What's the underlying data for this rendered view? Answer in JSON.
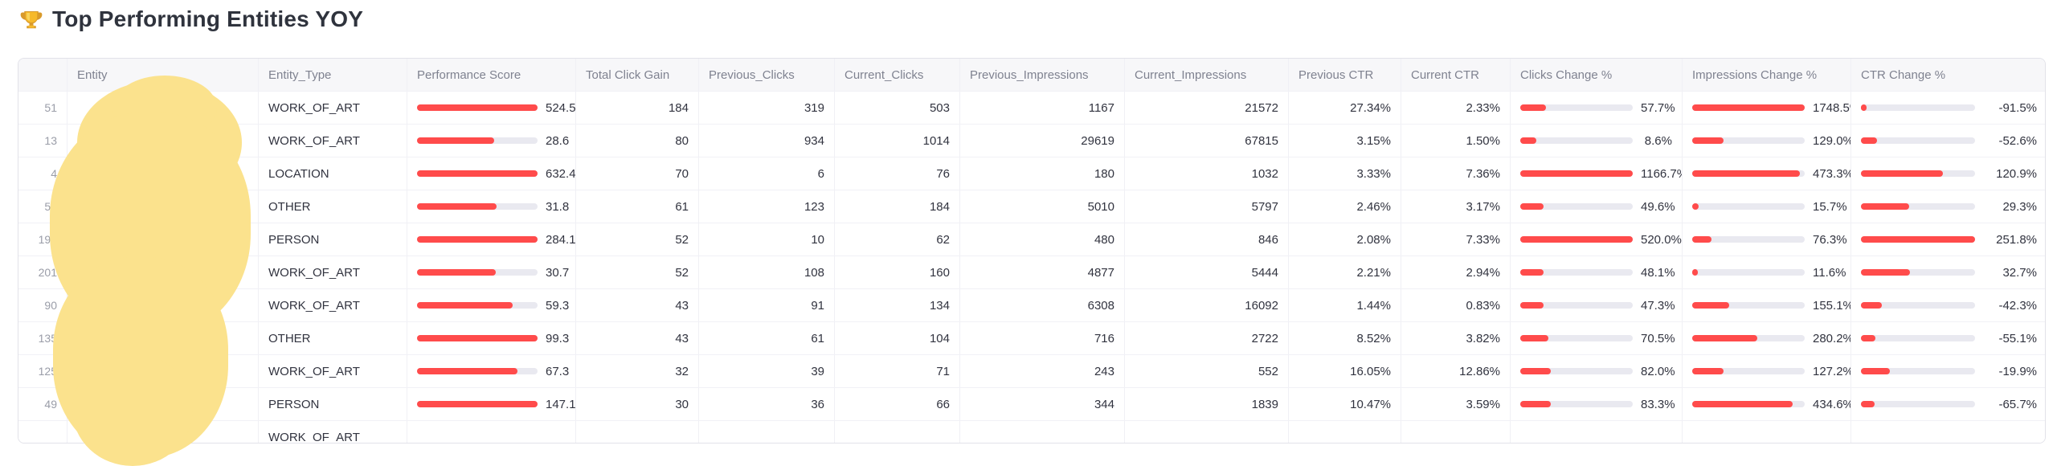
{
  "title": {
    "icon": "trophy",
    "text": "Top Performing Entities YOY"
  },
  "colors": {
    "accent_red": "#ff4b4b",
    "bar_track": "#e9e9f0",
    "redaction_blob": "#fbe28d",
    "header_bg": "#f7f7f9",
    "grid_line": "#f0f0f5",
    "title_text": "#2f333d"
  },
  "table": {
    "columns": [
      {
        "key": "index",
        "label": ""
      },
      {
        "key": "entity",
        "label": "Entity"
      },
      {
        "key": "entity_type",
        "label": "Entity_Type"
      },
      {
        "key": "performance_score",
        "label": "Performance Score"
      },
      {
        "key": "total_click_gain",
        "label": "Total Click Gain"
      },
      {
        "key": "previous_clicks",
        "label": "Previous_Clicks"
      },
      {
        "key": "current_clicks",
        "label": "Current_Clicks"
      },
      {
        "key": "previous_impressions",
        "label": "Previous_Impressions"
      },
      {
        "key": "current_impressions",
        "label": "Current_Impressions"
      },
      {
        "key": "previous_ctr",
        "label": "Previous CTR"
      },
      {
        "key": "current_ctr",
        "label": "Current CTR"
      },
      {
        "key": "clicks_change",
        "label": "Clicks Change %"
      },
      {
        "key": "impressions_change",
        "label": "Impressions Change %"
      },
      {
        "key": "ctr_change",
        "label": "CTR Change %"
      }
    ],
    "rows": [
      {
        "index": "51",
        "entity": "",
        "entity_type": "WORK_OF_ART",
        "performance_score": {
          "value": "524.5",
          "bar_pct": 100
        },
        "total_click_gain": "184",
        "previous_clicks": "319",
        "current_clicks": "503",
        "previous_impressions": "1167",
        "current_impressions": "21572",
        "previous_ctr": "27.34%",
        "current_ctr": "2.33%",
        "clicks_change": {
          "value": "57.7%",
          "bar_pct": 23
        },
        "impressions_change": {
          "value": "1748.5%",
          "bar_pct": 100
        },
        "ctr_change": {
          "value": "-91.5%",
          "bar_pct": 3
        }
      },
      {
        "index": "13",
        "entity": "",
        "entity_type": "WORK_OF_ART",
        "performance_score": {
          "value": "28.6",
          "bar_pct": 64
        },
        "total_click_gain": "80",
        "previous_clicks": "934",
        "current_clicks": "1014",
        "previous_impressions": "29619",
        "current_impressions": "67815",
        "previous_ctr": "3.15%",
        "current_ctr": "1.50%",
        "clicks_change": {
          "value": "8.6%",
          "bar_pct": 14
        },
        "impressions_change": {
          "value": "129.0%",
          "bar_pct": 28
        },
        "ctr_change": {
          "value": "-52.6%",
          "bar_pct": 14
        }
      },
      {
        "index": "4",
        "entity": "",
        "entity_type": "LOCATION",
        "performance_score": {
          "value": "632.4",
          "bar_pct": 100
        },
        "total_click_gain": "70",
        "previous_clicks": "6",
        "current_clicks": "76",
        "previous_impressions": "180",
        "current_impressions": "1032",
        "previous_ctr": "3.33%",
        "current_ctr": "7.36%",
        "clicks_change": {
          "value": "1166.7%",
          "bar_pct": 100
        },
        "impressions_change": {
          "value": "473.3%",
          "bar_pct": 96
        },
        "ctr_change": {
          "value": "120.9%",
          "bar_pct": 72
        }
      },
      {
        "index": "56",
        "entity": "",
        "entity_type": "OTHER",
        "performance_score": {
          "value": "31.8",
          "bar_pct": 66
        },
        "total_click_gain": "61",
        "previous_clicks": "123",
        "current_clicks": "184",
        "previous_impressions": "5010",
        "current_impressions": "5797",
        "previous_ctr": "2.46%",
        "current_ctr": "3.17%",
        "clicks_change": {
          "value": "49.6%",
          "bar_pct": 21
        },
        "impressions_change": {
          "value": "15.7%",
          "bar_pct": 6
        },
        "ctr_change": {
          "value": "29.3%",
          "bar_pct": 42
        }
      },
      {
        "index": "194",
        "entity": "",
        "entity_type": "PERSON",
        "performance_score": {
          "value": "284.1",
          "bar_pct": 100
        },
        "total_click_gain": "52",
        "previous_clicks": "10",
        "current_clicks": "62",
        "previous_impressions": "480",
        "current_impressions": "846",
        "previous_ctr": "2.08%",
        "current_ctr": "7.33%",
        "clicks_change": {
          "value": "520.0%",
          "bar_pct": 100
        },
        "impressions_change": {
          "value": "76.3%",
          "bar_pct": 17
        },
        "ctr_change": {
          "value": "251.8%",
          "bar_pct": 100
        }
      },
      {
        "index": "201",
        "entity": "",
        "entity_type": "WORK_OF_ART",
        "performance_score": {
          "value": "30.7",
          "bar_pct": 65
        },
        "total_click_gain": "52",
        "previous_clicks": "108",
        "current_clicks": "160",
        "previous_impressions": "4877",
        "current_impressions": "5444",
        "previous_ctr": "2.21%",
        "current_ctr": "2.94%",
        "clicks_change": {
          "value": "48.1%",
          "bar_pct": 21
        },
        "impressions_change": {
          "value": "11.6%",
          "bar_pct": 5
        },
        "ctr_change": {
          "value": "32.7%",
          "bar_pct": 43
        }
      },
      {
        "index": "90",
        "entity": "",
        "entity_type": "WORK_OF_ART",
        "performance_score": {
          "value": "59.3",
          "bar_pct": 79
        },
        "total_click_gain": "43",
        "previous_clicks": "91",
        "current_clicks": "134",
        "previous_impressions": "6308",
        "current_impressions": "16092",
        "previous_ctr": "1.44%",
        "current_ctr": "0.83%",
        "clicks_change": {
          "value": "47.3%",
          "bar_pct": 21
        },
        "impressions_change": {
          "value": "155.1%",
          "bar_pct": 33
        },
        "ctr_change": {
          "value": "-42.3%",
          "bar_pct": 18
        }
      },
      {
        "index": "135",
        "entity": "",
        "entity_type": "OTHER",
        "performance_score": {
          "value": "99.3",
          "bar_pct": 100
        },
        "total_click_gain": "43",
        "previous_clicks": "61",
        "current_clicks": "104",
        "previous_impressions": "716",
        "current_impressions": "2722",
        "previous_ctr": "8.52%",
        "current_ctr": "3.82%",
        "clicks_change": {
          "value": "70.5%",
          "bar_pct": 25
        },
        "impressions_change": {
          "value": "280.2%",
          "bar_pct": 58
        },
        "ctr_change": {
          "value": "-55.1%",
          "bar_pct": 13
        }
      },
      {
        "index": "125",
        "entity": "",
        "entity_type": "WORK_OF_ART",
        "performance_score": {
          "value": "67.3",
          "bar_pct": 83
        },
        "total_click_gain": "32",
        "previous_clicks": "39",
        "current_clicks": "71",
        "previous_impressions": "243",
        "current_impressions": "552",
        "previous_ctr": "16.05%",
        "current_ctr": "12.86%",
        "clicks_change": {
          "value": "82.0%",
          "bar_pct": 27
        },
        "impressions_change": {
          "value": "127.2%",
          "bar_pct": 28
        },
        "ctr_change": {
          "value": "-19.9%",
          "bar_pct": 25
        }
      },
      {
        "index": "49",
        "entity": "",
        "entity_type": "PERSON",
        "performance_score": {
          "value": "147.1",
          "bar_pct": 100
        },
        "total_click_gain": "30",
        "previous_clicks": "36",
        "current_clicks": "66",
        "previous_impressions": "344",
        "current_impressions": "1839",
        "previous_ctr": "10.47%",
        "current_ctr": "3.59%",
        "clicks_change": {
          "value": "83.3%",
          "bar_pct": 27
        },
        "impressions_change": {
          "value": "434.6%",
          "bar_pct": 89
        },
        "ctr_change": {
          "value": "-65.7%",
          "bar_pct": 12
        }
      },
      {
        "index": "",
        "entity": "",
        "entity_type": "WORK_OF_ART",
        "performance_score": null,
        "total_click_gain": "",
        "previous_clicks": "",
        "current_clicks": "",
        "previous_impressions": "",
        "current_impressions": "",
        "previous_ctr": "",
        "current_ctr": "",
        "clicks_change": null,
        "impressions_change": null,
        "ctr_change": null
      }
    ]
  },
  "overlay": {
    "description": "yellow redaction blob covering Entity column"
  }
}
